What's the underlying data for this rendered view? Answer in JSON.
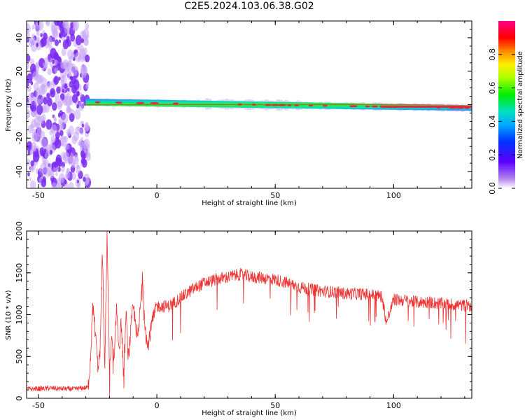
{
  "figure_title": "C2E5.2024.103.06.38.G02",
  "colors": {
    "snr_line": "#ee3333",
    "noise_dots": "#7a2cf0",
    "noise_light": "#c9a8f7",
    "axis": "#000000"
  },
  "chart_data": [
    {
      "type": "heatmap",
      "title": "C2E5.2024.103.06.38.G02",
      "xlabel": "Height of straight line (km)",
      "ylabel": "Frequency (Hz)",
      "xlim": [
        -55,
        133
      ],
      "ylim": [
        -50,
        50
      ],
      "xticks": [
        -50,
        0,
        50,
        100
      ],
      "yticks": [
        -40,
        -20,
        0,
        20,
        40
      ],
      "colorbar": {
        "label": "Normalized spectral amplitude",
        "ticks": [
          "0.0",
          "0.2",
          "0.4",
          "0.6",
          "0.8"
        ],
        "range": [
          0,
          1
        ],
        "colormap": "rainbow (purple-blue-cyan-green-yellow-red-magenta)"
      },
      "features": {
        "noise_region_x": [
          -55,
          -30
        ],
        "signal_start_x": -30,
        "signal_center_freq_start": 1.5,
        "signal_center_freq_end": -2
      }
    },
    {
      "type": "line",
      "xlabel": "Height of straight line (km)",
      "ylabel": "SNR (10 * v/v)",
      "xlim": [
        -55,
        133
      ],
      "ylim": [
        0,
        2000
      ],
      "xticks": [
        -50,
        0,
        50,
        100
      ],
      "yticks": [
        0,
        500,
        1000,
        1500,
        2000
      ],
      "series": [
        {
          "x": [
            -55,
            -45,
            -35,
            -29,
            -28,
            -27,
            -26,
            -25,
            -24,
            -23,
            -22,
            -21,
            -20,
            -19,
            -18,
            -17,
            -16,
            -15,
            -14,
            -13,
            -12,
            -10,
            -8,
            -6,
            -5,
            -4,
            -2,
            0,
            5,
            10,
            15,
            20,
            25,
            30,
            35,
            40,
            45,
            50,
            55,
            60,
            65,
            70,
            75,
            80,
            85,
            90,
            95,
            97,
            100,
            105,
            110,
            115,
            120,
            125,
            130,
            133
          ],
          "y": [
            110,
            120,
            110,
            130,
            500,
            1100,
            800,
            400,
            500,
            1800,
            300,
            2000,
            300,
            700,
            400,
            1100,
            600,
            900,
            300,
            1000,
            500,
            1100,
            700,
            1450,
            900,
            600,
            900,
            1100,
            1100,
            1200,
            1300,
            1380,
            1420,
            1450,
            1480,
            1450,
            1440,
            1420,
            1380,
            1330,
            1300,
            1280,
            1270,
            1250,
            1250,
            1240,
            1220,
            900,
            1180,
            1170,
            1150,
            1150,
            1130,
            1120,
            1110,
            1100
          ]
        }
      ]
    }
  ]
}
